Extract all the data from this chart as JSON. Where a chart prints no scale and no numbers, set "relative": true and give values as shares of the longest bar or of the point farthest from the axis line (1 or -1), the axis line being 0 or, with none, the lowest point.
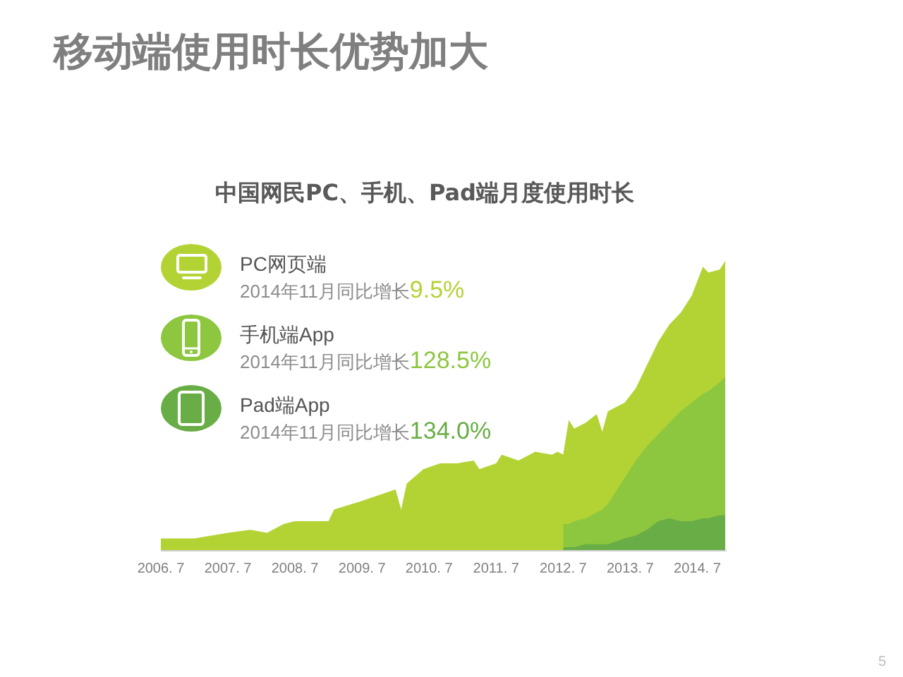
{
  "chart_data": {
    "type": "area",
    "title": "移动端使用时长优势加大",
    "subtitle": "中国网民PC、手机、Pad端月度使用时长",
    "x": [
      "2006-07",
      "2007-01",
      "2007-04",
      "2007-07",
      "2007-11",
      "2008-02",
      "2008-05",
      "2008-07",
      "2009-01",
      "2009-02",
      "2009-07",
      "2010-01",
      "2010-02",
      "2010-03",
      "2010-06",
      "2010-09",
      "2010-12",
      "2011-03",
      "2011-04",
      "2011-07",
      "2011-08",
      "2011-11",
      "2012-01",
      "2012-02",
      "2012-05",
      "2012-06",
      "2012-07",
      "2012-08",
      "2012-09",
      "2012-11",
      "2013-01",
      "2013-02",
      "2013-03",
      "2013-06",
      "2013-08",
      "2013-10",
      "2013-12",
      "2014-02",
      "2014-04",
      "2014-06",
      "2014-08",
      "2014-09",
      "2014-11",
      "2014-12"
    ],
    "series": [
      {
        "name": "Pad端App",
        "color": "#68ad45",
        "values": [
          null,
          null,
          null,
          null,
          null,
          null,
          null,
          null,
          null,
          null,
          null,
          null,
          null,
          null,
          null,
          null,
          null,
          null,
          null,
          null,
          null,
          null,
          null,
          null,
          null,
          null,
          0.01,
          0.01,
          0.01,
          0.02,
          0.02,
          0.02,
          0.02,
          0.04,
          0.05,
          0.07,
          0.1,
          0.11,
          0.1,
          0.1,
          0.11,
          0.11,
          0.12,
          0.12
        ]
      },
      {
        "name": "手机端App",
        "color": "#8dc63f",
        "values": [
          null,
          null,
          null,
          null,
          null,
          null,
          null,
          null,
          null,
          null,
          null,
          null,
          null,
          null,
          null,
          null,
          null,
          null,
          null,
          null,
          null,
          null,
          null,
          null,
          null,
          null,
          0.08,
          0.08,
          0.09,
          0.09,
          0.11,
          0.12,
          0.14,
          0.21,
          0.26,
          0.29,
          0.3,
          0.33,
          0.38,
          0.41,
          0.43,
          0.44,
          0.46,
          0.48
        ]
      },
      {
        "name": "PC网页端",
        "color": "#b3d335",
        "values": [
          0.04,
          0.04,
          0.05,
          0.06,
          0.07,
          0.06,
          0.09,
          0.1,
          0.1,
          0.14,
          0.17,
          0.21,
          0.14,
          0.23,
          0.28,
          0.3,
          0.3,
          0.31,
          0.28,
          0.3,
          0.33,
          0.31,
          0.33,
          0.34,
          0.33,
          0.34,
          0.24,
          0.36,
          0.32,
          0.33,
          0.34,
          0.27,
          0.32,
          0.26,
          0.25,
          0.28,
          0.32,
          0.34,
          0.34,
          0.37,
          0.44,
          0.41,
          0.39,
          0.4
        ]
      }
    ],
    "stacked": true,
    "relative": true,
    "xlim": [
      "2006-07",
      "2014-12"
    ],
    "xticks": [
      {
        "value": "2006-07",
        "label": "2006. 7"
      },
      {
        "value": "2007-07",
        "label": "2007. 7"
      },
      {
        "value": "2008-07",
        "label": "2008. 7"
      },
      {
        "value": "2009-07",
        "label": "2009. 7"
      },
      {
        "value": "2010-07",
        "label": "2010. 7"
      },
      {
        "value": "2011-07",
        "label": "2011. 7"
      },
      {
        "value": "2012-07",
        "label": "2012. 7"
      },
      {
        "value": "2013-07",
        "label": "2013. 7"
      },
      {
        "value": "2014-07",
        "label": "2014. 7"
      }
    ],
    "legend": "top left",
    "annotations": [
      "2014年11月同比增长",
      "9.5%",
      "2014年11月同比增长",
      "128.5%",
      "2014年11月同比增长",
      "134.0%",
      "5"
    ]
  }
}
